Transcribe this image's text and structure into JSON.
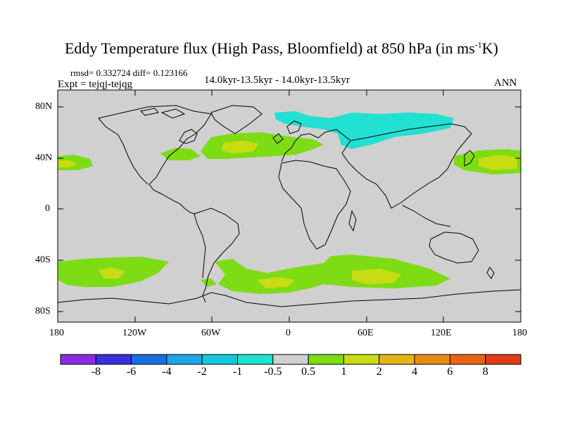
{
  "title": {
    "main": "Eddy Temperature flux (High Pass, Bloomfield) at 850 hPa (in ms",
    "sup": "-1",
    "tail": "K)"
  },
  "header": {
    "stats": "rmsd= 0.332724 diff= 0.123166",
    "expt": "Expt = tejqj-tejqg",
    "period": "14.0kyr-13.5kyr - 14.0kyr-13.5kyr",
    "season": "ANN"
  },
  "axes": {
    "lat_labels": [
      "80N",
      "40N",
      "0",
      "40S",
      "80S"
    ],
    "lon_labels": [
      "180",
      "120W",
      "60W",
      "0",
      "60E",
      "120E",
      "180"
    ]
  },
  "colorbar": {
    "labels": [
      "-8",
      "-6",
      "-4",
      "-2",
      "-1",
      "-0.5",
      "0.5",
      "1",
      "2",
      "4",
      "6",
      "8"
    ],
    "colors": [
      "#8b2be2",
      "#3a2fd9",
      "#1a6fe0",
      "#1fa6e6",
      "#14c8dc",
      "#22e0d2",
      "#d0d0d0",
      "#7ddc14",
      "#c8dc14",
      "#e6b414",
      "#e68c14",
      "#e66414",
      "#e03c14"
    ]
  },
  "colors": {
    "ocean_land_background": "#d0d0d0",
    "positive_1": "#7ddc14",
    "positive_2": "#c8dc14",
    "negative_1": "#22e0d2"
  }
}
